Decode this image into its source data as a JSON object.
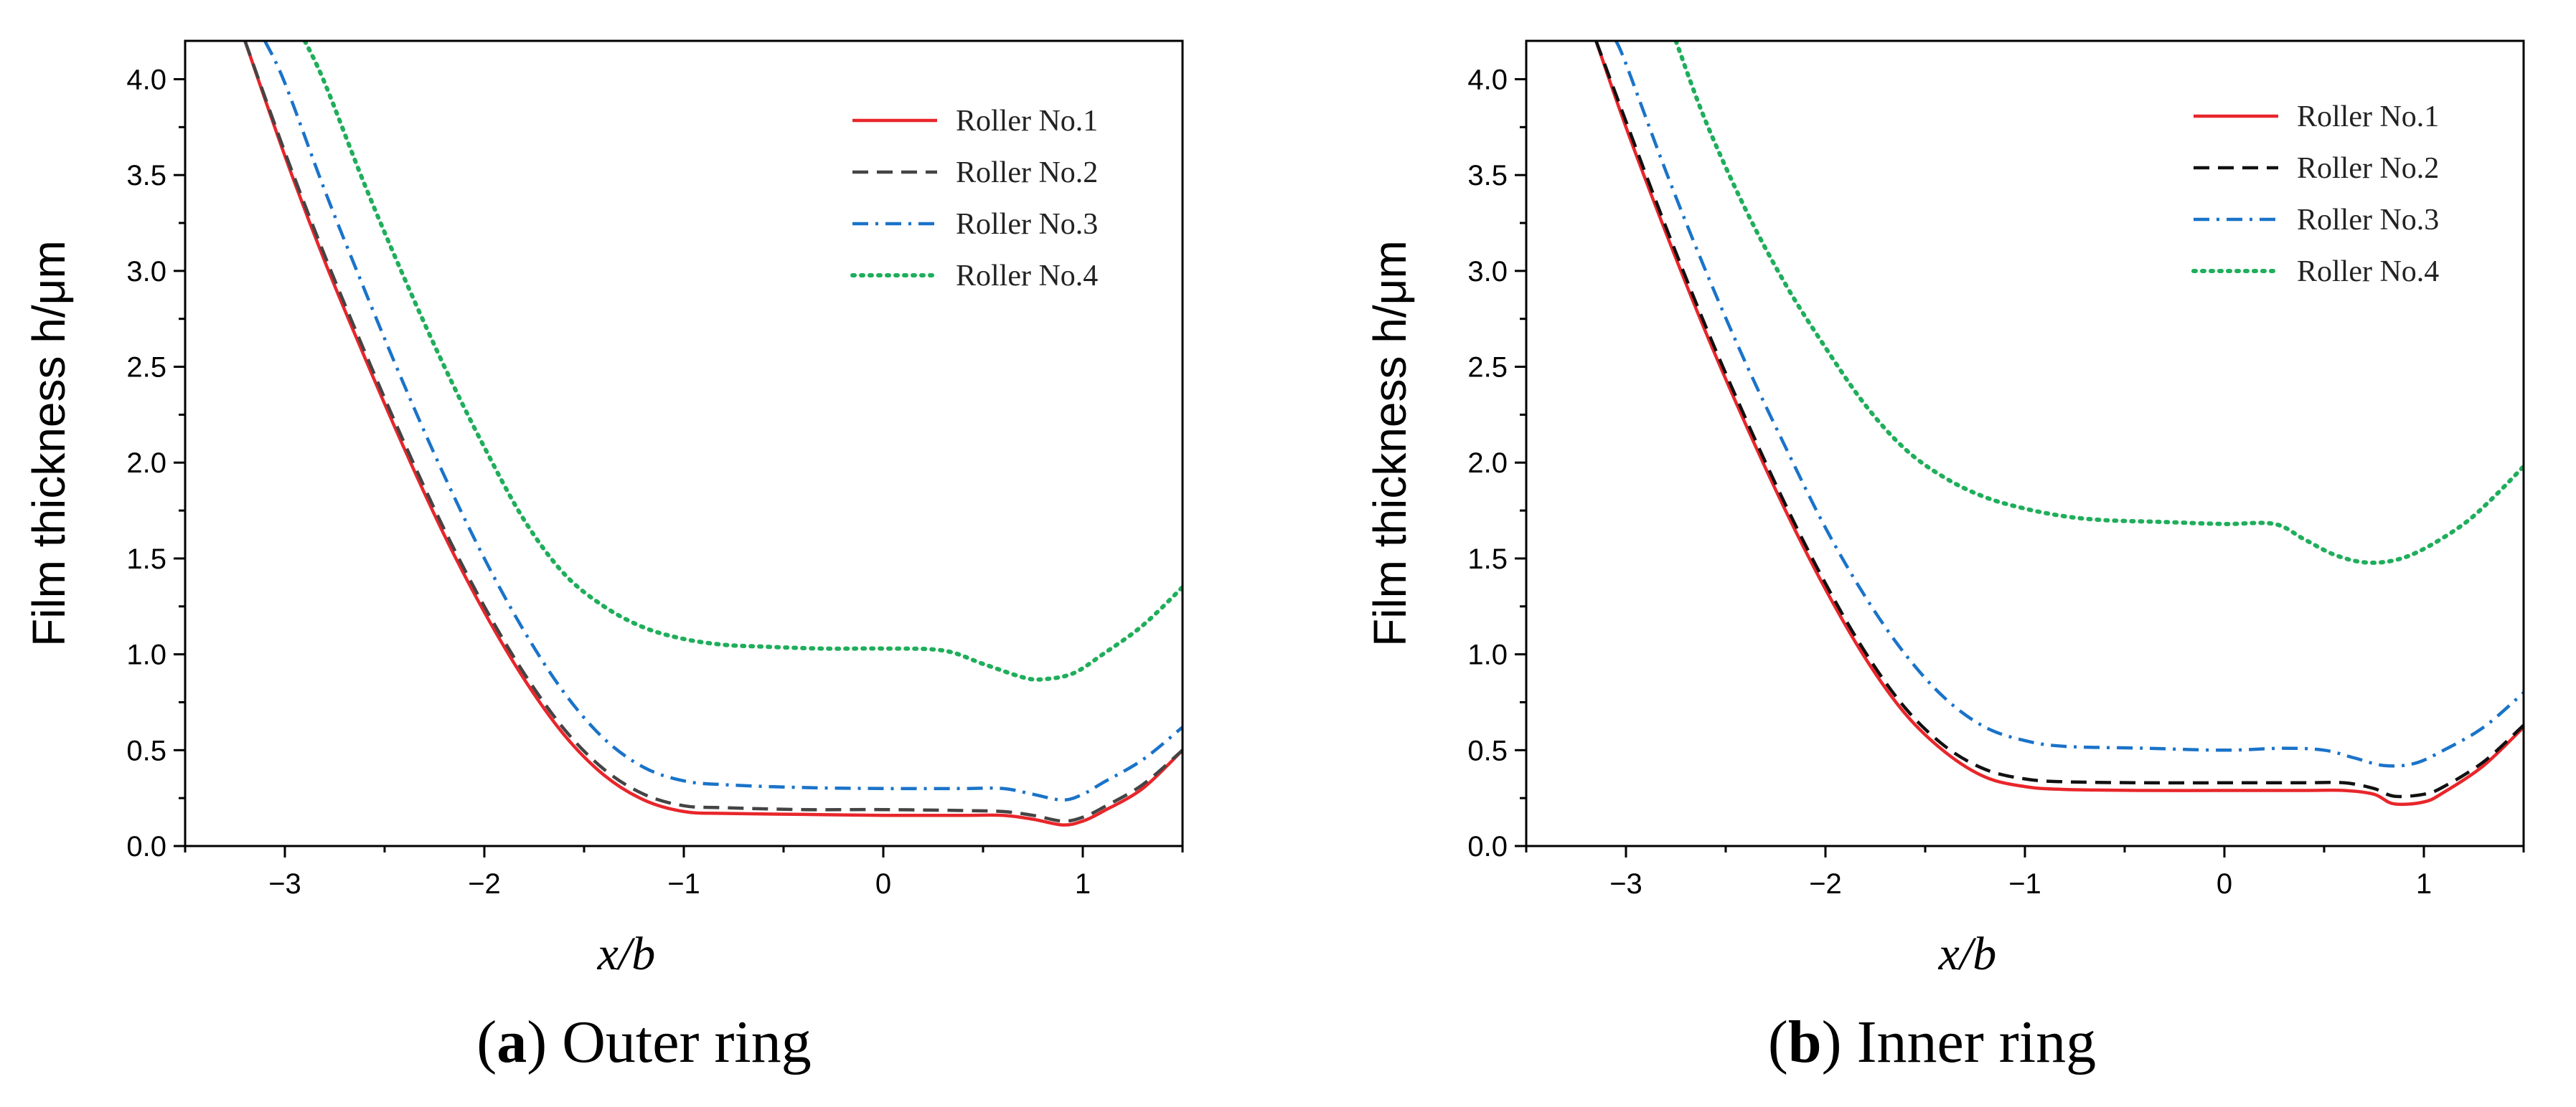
{
  "chart_data": [
    {
      "type": "line",
      "caption_letter": "a",
      "caption_text": "Outer ring",
      "xlabel": "x/b",
      "ylabel": "Film thickness h/μm",
      "xlim": [
        -3.5,
        1.5
      ],
      "ylim": [
        0.0,
        4.2
      ],
      "xticks": [
        -3,
        -2,
        -1,
        0,
        1
      ],
      "xtick_labels": [
        "−3",
        "−2",
        "−1",
        "0",
        "1"
      ],
      "yticks": [
        0.0,
        0.5,
        1.0,
        1.5,
        2.0,
        2.5,
        3.0,
        3.5,
        4.0
      ],
      "ytick_labels": [
        "0.0",
        "0.5",
        "1.0",
        "1.5",
        "2.0",
        "2.5",
        "3.0",
        "3.5",
        "4.0"
      ],
      "grid": false,
      "legend_position": "top-right",
      "series": [
        {
          "name": "Roller No.1",
          "color": "#e8262b",
          "dash": "solid",
          "x": [
            -3.2,
            -3.0,
            -2.8,
            -2.6,
            -2.4,
            -2.2,
            -2.0,
            -1.8,
            -1.6,
            -1.4,
            -1.2,
            -1.0,
            -0.8,
            -0.4,
            0.0,
            0.4,
            0.6,
            0.75,
            0.9,
            1.0,
            1.1,
            1.3,
            1.5
          ],
          "y": [
            4.2,
            3.6,
            3.05,
            2.55,
            2.07,
            1.62,
            1.22,
            0.87,
            0.58,
            0.37,
            0.24,
            0.18,
            0.17,
            0.165,
            0.16,
            0.16,
            0.16,
            0.14,
            0.11,
            0.13,
            0.18,
            0.3,
            0.5
          ]
        },
        {
          "name": "Roller No.2",
          "color": "#444444",
          "dash": "dashed",
          "x": [
            -3.2,
            -3.0,
            -2.8,
            -2.6,
            -2.4,
            -2.2,
            -2.0,
            -1.8,
            -1.6,
            -1.4,
            -1.2,
            -1.0,
            -0.8,
            -0.4,
            0.0,
            0.4,
            0.6,
            0.75,
            0.9,
            1.0,
            1.1,
            1.3,
            1.5
          ],
          "y": [
            4.2,
            3.62,
            3.08,
            2.58,
            2.1,
            1.65,
            1.25,
            0.9,
            0.61,
            0.4,
            0.27,
            0.21,
            0.2,
            0.19,
            0.19,
            0.185,
            0.18,
            0.16,
            0.13,
            0.15,
            0.2,
            0.32,
            0.5
          ]
        },
        {
          "name": "Roller No.3",
          "color": "#1a73c9",
          "dash": "dashdot",
          "x": [
            -3.1,
            -3.0,
            -2.8,
            -2.6,
            -2.4,
            -2.2,
            -2.0,
            -1.8,
            -1.6,
            -1.4,
            -1.2,
            -1.0,
            -0.8,
            -0.4,
            0.0,
            0.4,
            0.6,
            0.75,
            0.9,
            1.0,
            1.1,
            1.3,
            1.5
          ],
          "y": [
            4.2,
            3.98,
            3.42,
            2.9,
            2.4,
            1.93,
            1.5,
            1.12,
            0.8,
            0.56,
            0.41,
            0.34,
            0.32,
            0.305,
            0.3,
            0.3,
            0.3,
            0.27,
            0.24,
            0.27,
            0.33,
            0.45,
            0.62
          ]
        },
        {
          "name": "Roller No.4",
          "color": "#1fae5b",
          "dash": "dotted",
          "x": [
            -2.9,
            -2.8,
            -2.6,
            -2.4,
            -2.2,
            -2.0,
            -1.8,
            -1.6,
            -1.4,
            -1.2,
            -1.0,
            -0.8,
            -0.6,
            -0.3,
            0.0,
            0.3,
            0.5,
            0.7,
            0.8,
            0.95,
            1.1,
            1.3,
            1.5
          ],
          "y": [
            4.2,
            3.98,
            3.45,
            2.96,
            2.5,
            2.08,
            1.7,
            1.42,
            1.25,
            1.14,
            1.08,
            1.05,
            1.04,
            1.03,
            1.03,
            1.02,
            0.95,
            0.88,
            0.87,
            0.9,
            1.0,
            1.15,
            1.35
          ]
        }
      ]
    },
    {
      "type": "line",
      "caption_letter": "b",
      "caption_text": "Inner ring",
      "xlabel": "x/b",
      "ylabel": "Film thickness h/μm",
      "xlim": [
        -3.5,
        1.5
      ],
      "ylim": [
        0.0,
        4.2
      ],
      "xticks": [
        -3,
        -2,
        -1,
        0,
        1
      ],
      "xtick_labels": [
        "−3",
        "−2",
        "−1",
        "0",
        "1"
      ],
      "yticks": [
        0.0,
        0.5,
        1.0,
        1.5,
        2.0,
        2.5,
        3.0,
        3.5,
        4.0
      ],
      "ytick_labels": [
        "0.0",
        "0.5",
        "1.0",
        "1.5",
        "2.0",
        "2.5",
        "3.0",
        "3.5",
        "4.0"
      ],
      "grid": false,
      "legend_position": "top-right",
      "series": [
        {
          "name": "Roller No.1",
          "color": "#e8262b",
          "dash": "solid",
          "x": [
            -3.15,
            -3.0,
            -2.8,
            -2.6,
            -2.4,
            -2.2,
            -2.0,
            -1.8,
            -1.6,
            -1.4,
            -1.2,
            -1.0,
            -0.8,
            -0.4,
            0.0,
            0.4,
            0.6,
            0.75,
            0.85,
            1.0,
            1.1,
            1.3,
            1.5
          ],
          "y": [
            4.2,
            3.75,
            3.2,
            2.68,
            2.2,
            1.75,
            1.34,
            0.98,
            0.69,
            0.49,
            0.36,
            0.31,
            0.295,
            0.29,
            0.29,
            0.29,
            0.29,
            0.27,
            0.22,
            0.23,
            0.28,
            0.42,
            0.62
          ]
        },
        {
          "name": "Roller No.2",
          "color": "#111111",
          "dash": "dashed",
          "x": [
            -3.15,
            -3.0,
            -2.8,
            -2.6,
            -2.4,
            -2.2,
            -2.0,
            -1.8,
            -1.6,
            -1.4,
            -1.2,
            -1.0,
            -0.8,
            -0.4,
            0.0,
            0.4,
            0.6,
            0.75,
            0.85,
            1.0,
            1.1,
            1.3,
            1.5
          ],
          "y": [
            4.2,
            3.78,
            3.23,
            2.71,
            2.23,
            1.78,
            1.37,
            1.01,
            0.72,
            0.52,
            0.4,
            0.35,
            0.335,
            0.33,
            0.33,
            0.33,
            0.33,
            0.3,
            0.26,
            0.27,
            0.31,
            0.44,
            0.63
          ]
        },
        {
          "name": "Roller No.3",
          "color": "#1a73c9",
          "dash": "dashdot",
          "x": [
            -3.05,
            -3.0,
            -2.8,
            -2.6,
            -2.4,
            -2.2,
            -2.0,
            -1.8,
            -1.6,
            -1.4,
            -1.2,
            -1.0,
            -0.8,
            -0.4,
            0.0,
            0.3,
            0.5,
            0.65,
            0.8,
            0.95,
            1.1,
            1.3,
            1.5
          ],
          "y": [
            4.2,
            4.08,
            3.52,
            3.0,
            2.52,
            2.08,
            1.66,
            1.3,
            1.0,
            0.77,
            0.62,
            0.55,
            0.52,
            0.51,
            0.5,
            0.51,
            0.5,
            0.46,
            0.42,
            0.43,
            0.5,
            0.62,
            0.8
          ]
        },
        {
          "name": "Roller No.4",
          "color": "#1fae5b",
          "dash": "dotted",
          "x": [
            -2.75,
            -2.6,
            -2.4,
            -2.2,
            -2.0,
            -1.8,
            -1.6,
            -1.4,
            -1.2,
            -1.0,
            -0.8,
            -0.6,
            -0.3,
            0.0,
            0.25,
            0.4,
            0.55,
            0.7,
            0.85,
            1.0,
            1.2,
            1.35,
            1.5
          ],
          "y": [
            4.2,
            3.78,
            3.32,
            2.93,
            2.6,
            2.3,
            2.07,
            1.92,
            1.82,
            1.76,
            1.72,
            1.7,
            1.69,
            1.68,
            1.68,
            1.6,
            1.52,
            1.48,
            1.49,
            1.55,
            1.68,
            1.82,
            1.98
          ]
        }
      ]
    }
  ]
}
